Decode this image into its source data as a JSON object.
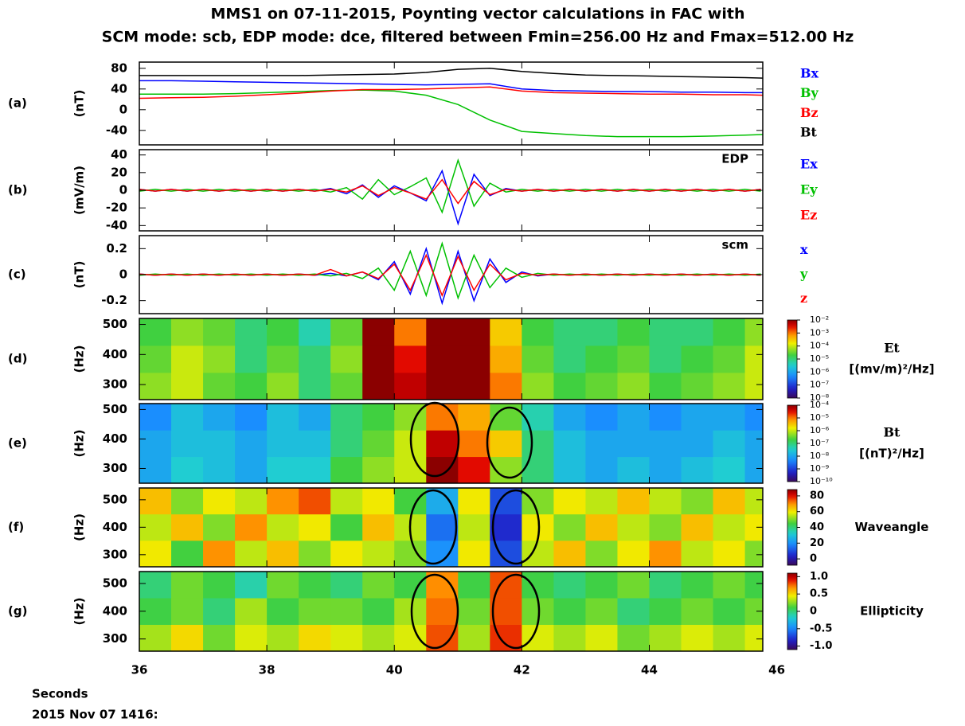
{
  "chart_data": [
    {
      "type": "line",
      "label": "(a)",
      "ylabel": "(nT)",
      "title": [
        "MMS1 on 07-11-2015, Poynting vector calculations in FAC with",
        "SCM mode: scb, EDP mode: dce, filtered between Fmin=256.00 Hz and Fmax=512.00 Hz"
      ],
      "xlim": [
        36,
        45.78
      ],
      "ylim": [
        -68,
        92
      ],
      "yticks": [
        -40,
        0,
        40,
        80
      ],
      "x": [
        36,
        36.5,
        37,
        37.5,
        38,
        38.5,
        39,
        39.5,
        40,
        40.5,
        41,
        41.5,
        42,
        42.5,
        43,
        43.5,
        44,
        44.5,
        45,
        45.5,
        45.78
      ],
      "series": [
        {
          "name": "Bx",
          "color": "#0000ff",
          "values": [
            56,
            56,
            55,
            54,
            53,
            52,
            51,
            50,
            49,
            48,
            49,
            50,
            40,
            37,
            36,
            35,
            35,
            34,
            34,
            33,
            33
          ]
        },
        {
          "name": "By",
          "color": "#00c000",
          "values": [
            30,
            30,
            30,
            31,
            33,
            35,
            37,
            38,
            36,
            28,
            10,
            -20,
            -42,
            -46,
            -50,
            -52,
            -52,
            -52,
            -51,
            -49,
            -48
          ]
        },
        {
          "name": "Bz",
          "color": "#ff0000",
          "values": [
            22,
            23,
            24,
            26,
            29,
            32,
            36,
            39,
            39,
            40,
            42,
            44,
            36,
            33,
            32,
            31,
            30,
            30,
            29,
            29,
            28
          ]
        },
        {
          "name": "Bt",
          "color": "#000000",
          "values": [
            66,
            66,
            66,
            66,
            66,
            66,
            67,
            68,
            69,
            72,
            78,
            80,
            74,
            70,
            67,
            66,
            65,
            64,
            63,
            62,
            61
          ]
        }
      ]
    },
    {
      "type": "line",
      "label": "(b)",
      "ylabel": "(mV/m)",
      "annotation": "EDP",
      "xlim": [
        36,
        45.78
      ],
      "ylim": [
        -46,
        46
      ],
      "yticks": [
        -40,
        -20,
        0,
        20,
        40
      ],
      "x": [
        36,
        36.25,
        36.5,
        36.75,
        37,
        37.25,
        37.5,
        37.75,
        38,
        38.25,
        38.5,
        38.75,
        39,
        39.25,
        39.5,
        39.75,
        40,
        40.25,
        40.5,
        40.75,
        41,
        41.25,
        41.5,
        41.75,
        42,
        42.25,
        42.5,
        42.75,
        43,
        43.25,
        43.5,
        43.75,
        44,
        44.25,
        44.5,
        44.75,
        45,
        45.25,
        45.5,
        45.75
      ],
      "series": [
        {
          "name": "Ex",
          "color": "#0000ff",
          "values": [
            1,
            -1,
            1,
            -1,
            1,
            -1,
            1,
            -1,
            1,
            -1,
            1,
            -1,
            2,
            -4,
            6,
            -8,
            5,
            -3,
            -12,
            22,
            -38,
            18,
            -6,
            2,
            -1,
            1,
            -1,
            1,
            -1,
            1,
            -1,
            1,
            -1,
            1,
            -1,
            1,
            -1,
            1,
            -1,
            1
          ]
        },
        {
          "name": "Ey",
          "color": "#00c000",
          "values": [
            -1,
            1,
            -1,
            1,
            -1,
            1,
            -1,
            1,
            -1,
            1,
            -1,
            1,
            -2,
            3,
            -10,
            12,
            -5,
            4,
            14,
            -25,
            34,
            -18,
            8,
            -2,
            1,
            -1,
            1,
            -1,
            1,
            -1,
            1,
            -1,
            1,
            -1,
            1,
            -1,
            1,
            -1,
            1,
            -1
          ]
        },
        {
          "name": "Ez",
          "color": "#ff0000",
          "values": [
            1,
            -1,
            1,
            -1,
            1,
            -1,
            1,
            -1,
            1,
            -1,
            1,
            -1,
            1,
            -2,
            5,
            -6,
            3,
            -3,
            -10,
            12,
            -15,
            10,
            -5,
            1,
            -1,
            1,
            -1,
            1,
            -1,
            1,
            -1,
            1,
            -1,
            1,
            -1,
            1,
            -1,
            1,
            -1,
            1
          ]
        }
      ]
    },
    {
      "type": "line",
      "label": "(c)",
      "ylabel": "(nT)",
      "annotation": "scm",
      "xlim": [
        36,
        45.78
      ],
      "ylim": [
        -0.3,
        0.3
      ],
      "yticks": [
        -0.2,
        0,
        0.2
      ],
      "x": [
        36,
        36.25,
        36.5,
        36.75,
        37,
        37.25,
        37.5,
        37.75,
        38,
        38.25,
        38.5,
        38.75,
        39,
        39.25,
        39.5,
        39.75,
        40,
        40.25,
        40.5,
        40.75,
        41,
        41.25,
        41.5,
        41.75,
        42,
        42.25,
        42.5,
        42.75,
        43,
        43.25,
        43.5,
        43.75,
        44,
        44.25,
        44.5,
        44.75,
        45,
        45.25,
        45.5,
        45.75
      ],
      "series": [
        {
          "name": "x",
          "color": "#0000ff",
          "values": [
            0.005,
            -0.005,
            0.005,
            -0.005,
            0.005,
            -0.005,
            0.005,
            -0.005,
            0.005,
            -0.005,
            0.005,
            -0.005,
            0.01,
            -0.01,
            0.02,
            -0.04,
            0.1,
            -0.15,
            0.2,
            -0.22,
            0.18,
            -0.2,
            0.12,
            -0.06,
            0.02,
            -0.01,
            0.005,
            -0.005,
            0.005,
            -0.005,
            0.005,
            -0.005,
            0.005,
            -0.005,
            0.005,
            -0.005,
            0.005,
            -0.005,
            0.005,
            -0.005
          ]
        },
        {
          "name": "y",
          "color": "#00c000",
          "values": [
            -0.005,
            0.005,
            -0.005,
            0.005,
            -0.005,
            0.005,
            -0.005,
            0.005,
            -0.005,
            0.005,
            -0.005,
            0.005,
            -0.01,
            0.01,
            -0.03,
            0.05,
            -0.12,
            0.18,
            -0.16,
            0.24,
            -0.18,
            0.15,
            -0.1,
            0.05,
            -0.02,
            0.01,
            -0.005,
            0.005,
            -0.005,
            0.005,
            -0.005,
            0.005,
            -0.005,
            0.005,
            -0.005,
            0.005,
            -0.005,
            0.005,
            -0.005,
            0.005
          ]
        },
        {
          "name": "z",
          "color": "#ff0000",
          "values": [
            0.004,
            -0.004,
            0.004,
            -0.004,
            0.004,
            -0.004,
            0.004,
            -0.004,
            0.004,
            -0.004,
            0.004,
            -0.004,
            0.04,
            -0.01,
            0.02,
            -0.03,
            0.08,
            -0.12,
            0.15,
            -0.16,
            0.14,
            -0.12,
            0.08,
            -0.04,
            0.01,
            -0.004,
            0.004,
            -0.004,
            0.004,
            -0.004,
            0.004,
            -0.004,
            0.004,
            -0.004,
            0.004,
            -0.004,
            0.004,
            -0.004,
            0.004,
            -0.004
          ]
        }
      ]
    },
    {
      "type": "heatmap",
      "label": "(d)",
      "ylabel": "(Hz)",
      "colorbar_label": [
        "Et",
        "[(mv/m)²/Hz]"
      ],
      "zscale": "log",
      "xlim": [
        36,
        45.78
      ],
      "ylim": [
        250,
        520
      ],
      "yticks": [
        300,
        400,
        500
      ],
      "x_bins": [
        36,
        36.5,
        37,
        37.5,
        38,
        38.5,
        39,
        39.5,
        40,
        40.5,
        41,
        41.5,
        42,
        42.5,
        43,
        43.5,
        44,
        44.5,
        45,
        45.5,
        45.78
      ],
      "y_bins": [
        250,
        340,
        430,
        520
      ],
      "zlim": [
        1e-08,
        0.01
      ],
      "zticks": [
        {
          "value": 0.01,
          "label": "10⁻²"
        },
        {
          "value": 0.001,
          "label": "10⁻³"
        },
        {
          "value": 0.0001,
          "label": "10⁻⁴"
        },
        {
          "value": 1e-05,
          "label": "10⁻⁵"
        },
        {
          "value": 1e-06,
          "label": "10⁻⁶"
        },
        {
          "value": 1e-07,
          "label": "10⁻⁷"
        },
        {
          "value": 1e-08,
          "label": "10⁻⁸"
        }
      ],
      "values": [
        [
          5e-05,
          0.0001,
          3e-05,
          2e-05,
          5e-05,
          1e-05,
          3e-05,
          0.01,
          0.005,
          0.01,
          0.01,
          0.001,
          5e-05,
          2e-05,
          3e-05,
          5e-05,
          2e-05,
          3e-05,
          5e-05,
          0.0001
        ],
        [
          3e-05,
          0.0001,
          5e-05,
          1e-05,
          3e-05,
          1e-05,
          5e-05,
          0.01,
          0.003,
          0.01,
          0.01,
          0.0005,
          3e-05,
          1e-05,
          2e-05,
          3e-05,
          1e-05,
          2e-05,
          3e-05,
          0.0001
        ],
        [
          2e-05,
          5e-05,
          3e-05,
          1e-05,
          2e-05,
          5e-06,
          3e-05,
          0.01,
          0.001,
          0.01,
          0.01,
          0.0003,
          2e-05,
          1e-05,
          1e-05,
          2e-05,
          1e-05,
          1e-05,
          2e-05,
          5e-05
        ]
      ]
    },
    {
      "type": "heatmap",
      "label": "(e)",
      "ylabel": "(Hz)",
      "colorbar_label": [
        "Bt",
        "[(nT)²/Hz]"
      ],
      "zscale": "log",
      "xlim": [
        36,
        45.78
      ],
      "ylim": [
        250,
        520
      ],
      "yticks": [
        300,
        400,
        500
      ],
      "x_bins": [
        36,
        36.5,
        37,
        37.5,
        38,
        38.5,
        39,
        39.5,
        40,
        40.5,
        41,
        41.5,
        42,
        42.5,
        43,
        43.5,
        44,
        44.5,
        45,
        45.5,
        45.78
      ],
      "y_bins": [
        250,
        340,
        430,
        520
      ],
      "zlim": [
        1e-10,
        0.0001
      ],
      "zticks": [
        {
          "value": 0.0001,
          "label": "10⁻⁴"
        },
        {
          "value": 1e-05,
          "label": "10⁻⁵"
        },
        {
          "value": 1e-06,
          "label": "10⁻⁶"
        },
        {
          "value": 1e-07,
          "label": "10⁻⁷"
        },
        {
          "value": 1e-08,
          "label": "10⁻⁸"
        },
        {
          "value": 1e-09,
          "label": "10⁻⁹"
        },
        {
          "value": 1e-10,
          "label": "10⁻¹⁰"
        }
      ],
      "values": [
        [
          1e-08,
          3e-08,
          2e-08,
          1e-08,
          3e-08,
          3e-08,
          2e-07,
          5e-07,
          1e-06,
          0.0001,
          3e-05,
          5e-07,
          1e-07,
          2e-08,
          1e-08,
          2e-08,
          1e-08,
          2e-08,
          3e-08,
          1e-08
        ],
        [
          1e-08,
          2e-08,
          2e-08,
          1e-08,
          2e-08,
          2e-08,
          1e-07,
          3e-07,
          1e-06,
          5e-05,
          1e-05,
          3e-06,
          1e-07,
          2e-08,
          1e-08,
          1e-08,
          1e-08,
          1e-08,
          2e-08,
          1e-08
        ],
        [
          5e-09,
          2e-08,
          1e-08,
          5e-09,
          2e-08,
          1e-08,
          1e-07,
          2e-07,
          5e-07,
          1e-05,
          5e-06,
          3e-07,
          5e-08,
          1e-08,
          5e-09,
          1e-08,
          5e-09,
          1e-08,
          1e-08,
          5e-09
        ]
      ]
    },
    {
      "type": "heatmap",
      "label": "(f)",
      "ylabel": "(Hz)",
      "colorbar_label": [
        "Waveangle"
      ],
      "zscale": "linear",
      "xlim": [
        36,
        45.78
      ],
      "ylim": [
        256,
        543
      ],
      "yticks": [
        300,
        400,
        500
      ],
      "x_bins": [
        36,
        36.5,
        37,
        37.5,
        38,
        38.5,
        39,
        39.5,
        40,
        40.5,
        41,
        41.5,
        42,
        42.5,
        43,
        43.5,
        44,
        44.5,
        45,
        45.5,
        45.78
      ],
      "y_bins": [
        256,
        352,
        448,
        543
      ],
      "zlim": [
        -8,
        88
      ],
      "zticks": [
        0,
        20,
        40,
        60,
        80
      ],
      "values": [
        [
          60,
          45,
          70,
          55,
          65,
          50,
          60,
          55,
          50,
          20,
          60,
          10,
          55,
          65,
          50,
          60,
          70,
          55,
          60,
          50
        ],
        [
          55,
          65,
          50,
          70,
          55,
          60,
          45,
          65,
          55,
          15,
          55,
          5,
          60,
          50,
          65,
          55,
          50,
          65,
          55,
          60
        ],
        [
          65,
          50,
          60,
          55,
          70,
          75,
          55,
          60,
          45,
          25,
          60,
          10,
          50,
          60,
          55,
          65,
          55,
          50,
          65,
          55
        ]
      ]
    },
    {
      "type": "heatmap",
      "label": "(g)",
      "ylabel": "(Hz)",
      "colorbar_label": [
        "Ellipticity"
      ],
      "zscale": "linear",
      "xlim": [
        36,
        45.78
      ],
      "ylim": [
        256,
        543
      ],
      "yticks": [
        300,
        400,
        500
      ],
      "xticks": [
        36,
        38,
        40,
        42,
        44,
        46
      ],
      "xlabel": [
        "Seconds",
        "2015 Nov 07 1416:"
      ],
      "x_bins": [
        36,
        36.5,
        37,
        37.5,
        38,
        38.5,
        39,
        39.5,
        40,
        40.5,
        41,
        41.5,
        42,
        42.5,
        43,
        43.5,
        44,
        44.5,
        45,
        45.5,
        45.78
      ],
      "y_bins": [
        256,
        352,
        448,
        543
      ],
      "zlim": [
        -1.1,
        1.1
      ],
      "zticks": [
        {
          "value": 1,
          "label": "1.0"
        },
        0.5,
        0,
        -0.5,
        {
          "value": -1,
          "label": "-1.0"
        }
      ],
      "values": [
        [
          0.3,
          0.5,
          0.2,
          0.4,
          0.3,
          0.5,
          0.4,
          0.3,
          0.4,
          0.8,
          0.3,
          0.85,
          0.4,
          0.3,
          0.4,
          0.2,
          0.3,
          0.4,
          0.3,
          0.4
        ],
        [
          0.1,
          0.2,
          0,
          0.3,
          0.1,
          0.2,
          0.2,
          0.1,
          0.3,
          0.75,
          0.2,
          0.8,
          0.2,
          0.1,
          0.2,
          0,
          0.1,
          0.2,
          0.1,
          0.2
        ],
        [
          0,
          0.2,
          0.1,
          -0.1,
          0.2,
          0.1,
          0,
          0.2,
          0.1,
          0.7,
          0.1,
          0.8,
          0.1,
          0,
          0.1,
          0.2,
          0,
          0.1,
          0.2,
          0.1
        ]
      ]
    }
  ]
}
